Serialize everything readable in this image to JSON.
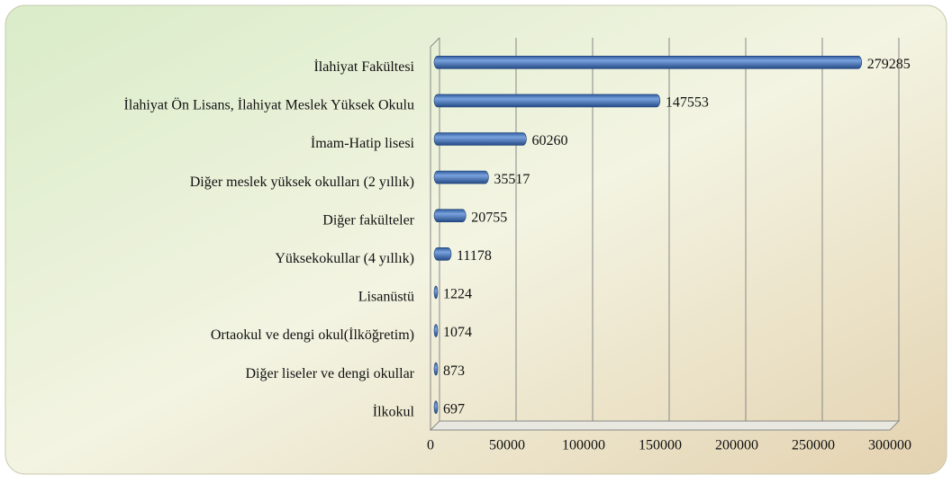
{
  "chart_data": {
    "type": "bar",
    "orientation": "horizontal",
    "categories": [
      "İlahiyat Fakültesi",
      "İlahiyat Ön Lisans, İlahiyat Meslek Yüksek Okulu",
      "İmam-Hatip lisesi",
      "Diğer meslek yüksek okulları (2 yıllık)",
      "Diğer fakülteler",
      "Yüksekokullar (4 yıllık)",
      "Lisanüstü",
      "Ortaokul ve dengi okul(İlköğretim)",
      "Diğer liseler ve dengi okullar",
      "İlkokul"
    ],
    "values": [
      279285,
      147553,
      60260,
      35517,
      20755,
      11178,
      1224,
      1074,
      873,
      697
    ],
    "color": "#4a7bc4",
    "xlim": [
      0,
      300000
    ],
    "xticks": [
      0,
      50000,
      100000,
      150000,
      200000,
      250000,
      300000
    ],
    "grid": true
  }
}
